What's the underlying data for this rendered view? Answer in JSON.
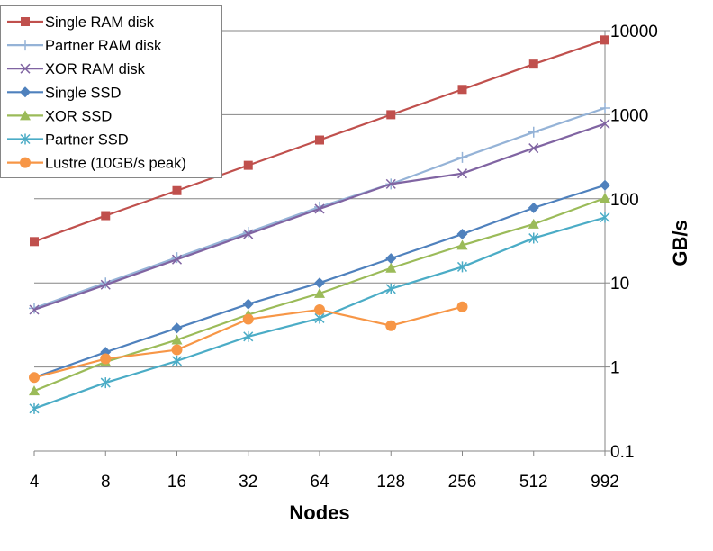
{
  "chart_data": {
    "type": "line",
    "xlabel": "Nodes",
    "ylabel": "GB/s",
    "y_scale": "log",
    "ylim": [
      0.1,
      10000
    ],
    "y_axis_side": "right",
    "grid": "horizontal",
    "legend_position": "top-left",
    "x": [
      "4",
      "8",
      "16",
      "32",
      "64",
      "128",
      "256",
      "512",
      "992"
    ],
    "y_ticks": [
      "0.1",
      "1",
      "10",
      "100",
      "1000",
      "10000"
    ],
    "series": [
      {
        "name": "Single RAM disk",
        "color": "#C0504D",
        "marker": "square",
        "values": [
          31,
          63,
          125,
          250,
          500,
          1000,
          2000,
          4000,
          7750
        ]
      },
      {
        "name": "Partner RAM disk",
        "color": "#95B3D7",
        "marker": "plus",
        "values": [
          5,
          10,
          20,
          40,
          80,
          150,
          310,
          620,
          1200
        ]
      },
      {
        "name": "XOR RAM disk",
        "color": "#8064A2",
        "marker": "x",
        "values": [
          4.8,
          9.5,
          19,
          38,
          76,
          150,
          200,
          400,
          780
        ]
      },
      {
        "name": "Single SSD",
        "color": "#4F81BD",
        "marker": "diamond",
        "values": [
          0.75,
          1.5,
          2.9,
          5.6,
          10,
          19.5,
          38,
          78,
          145
        ]
      },
      {
        "name": "XOR SSD",
        "color": "#9BBB59",
        "marker": "triangle",
        "values": [
          0.52,
          1.15,
          2.1,
          4.2,
          7.5,
          15,
          28,
          50,
          102
        ]
      },
      {
        "name": "Partner SSD",
        "color": "#4BACC6",
        "marker": "asterisk",
        "values": [
          0.32,
          0.65,
          1.18,
          2.3,
          3.8,
          8.5,
          15.5,
          34,
          60
        ]
      },
      {
        "name": "Lustre (10GB/s peak)",
        "color": "#F79646",
        "marker": "circle",
        "values": [
          0.75,
          1.25,
          1.6,
          3.7,
          4.8,
          3.1,
          5.2,
          null,
          null
        ]
      }
    ]
  }
}
